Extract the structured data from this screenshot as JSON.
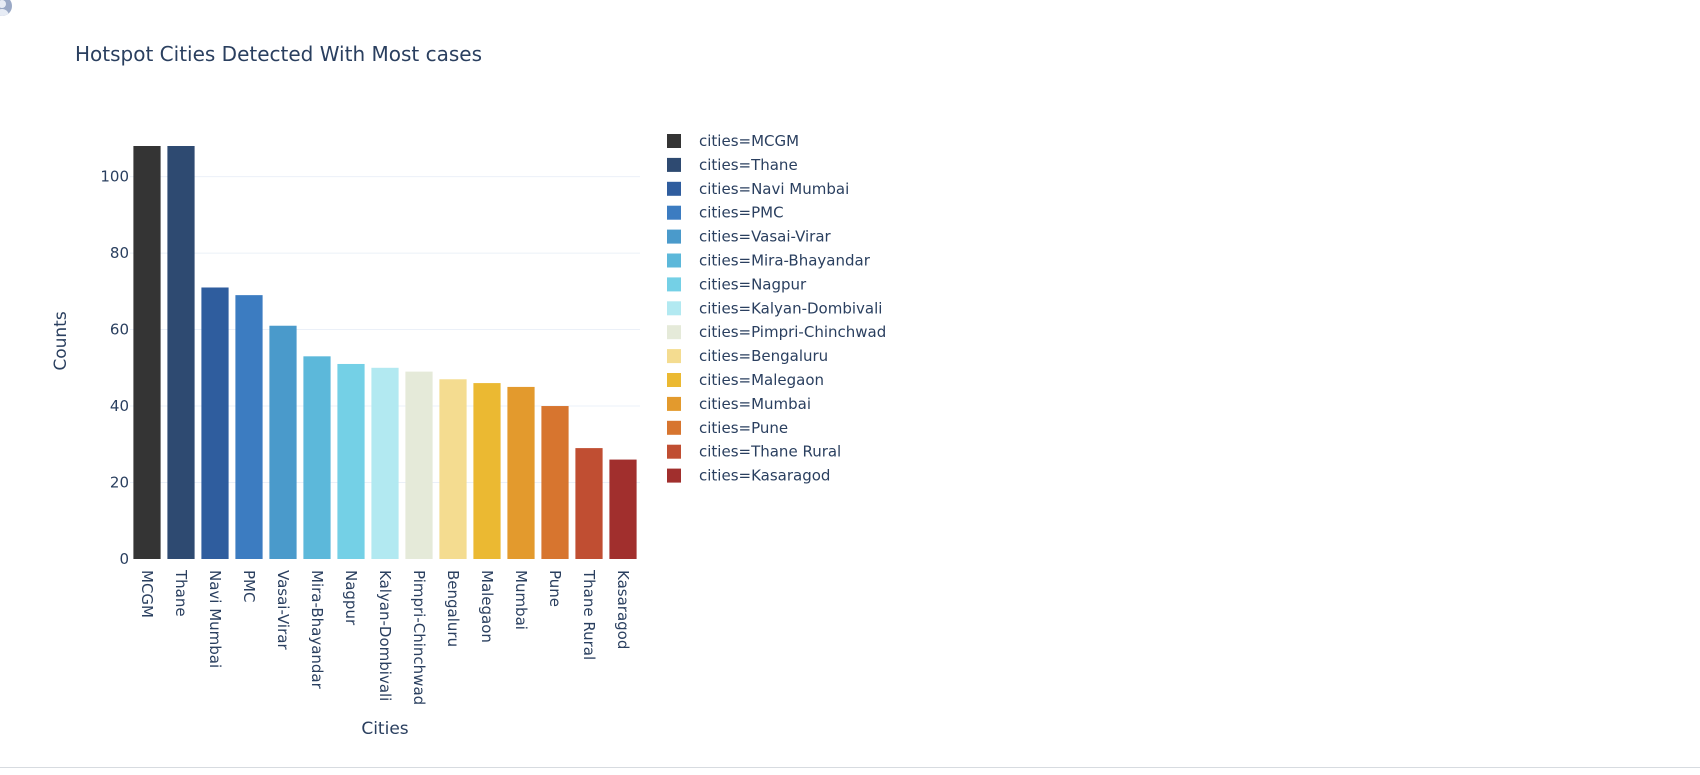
{
  "chart_data": {
    "type": "bar",
    "title": "Hotspot Cities Detected With Most cases",
    "xlabel": "Cities",
    "ylabel": "Counts",
    "ylim": [
      0,
      108
    ],
    "yticks": [
      0,
      20,
      40,
      60,
      80,
      100
    ],
    "grid": true,
    "legend_position": "right",
    "legend_prefix": "cities=",
    "categories": [
      "MCGM",
      "Thane",
      "Navi Mumbai",
      "PMC",
      "Vasai-Virar",
      "Mira-Bhayandar",
      "Nagpur",
      "Kalyan-Dombivali",
      "Pimpri-Chinchwad",
      "Bengaluru",
      "Malegaon",
      "Mumbai",
      "Pune",
      "Thane Rural",
      "Kasaragod"
    ],
    "values": [
      108,
      108,
      71,
      69,
      61,
      53,
      51,
      50,
      49,
      47,
      46,
      45,
      40,
      29,
      26
    ],
    "colors": [
      "#343434",
      "#2e4a71",
      "#2f5d9e",
      "#3c7cc1",
      "#4a9acb",
      "#5cb8da",
      "#74d0e6",
      "#b2e9f1",
      "#e5ead9",
      "#f4dc90",
      "#ebb932",
      "#e39a2d",
      "#d7752f",
      "#c04e32",
      "#a12f2d"
    ]
  }
}
